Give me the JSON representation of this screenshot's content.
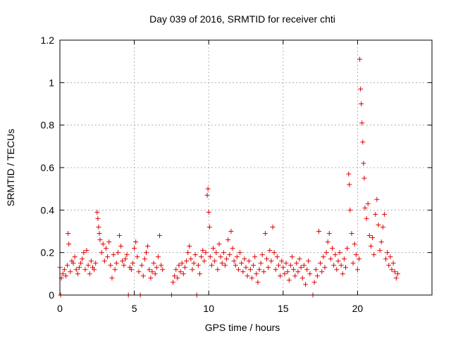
{
  "chart_data": {
    "type": "scatter",
    "title": "Day 039 of 2016, SRMTID for receiver chti",
    "xlabel": "GPS time / hours",
    "ylabel": "SRMTID / TECUs",
    "xlim": [
      0,
      25
    ],
    "ylim": [
      0,
      1.2
    ],
    "xticks": [
      "0",
      "5",
      "10",
      "15",
      "20"
    ],
    "yticks": [
      "0",
      "0.2",
      "0.4",
      "0.6",
      "0.8",
      "1",
      "1.2"
    ],
    "grid": true,
    "marker": "+",
    "color": "#e00000",
    "series": [
      {
        "name": "SRMTID",
        "points": [
          [
            0.0,
            0.13
          ],
          [
            0.05,
            0.0
          ],
          [
            0.1,
            0.08
          ],
          [
            0.2,
            0.1
          ],
          [
            0.3,
            0.12
          ],
          [
            0.4,
            0.09
          ],
          [
            0.5,
            0.14
          ],
          [
            0.55,
            0.29
          ],
          [
            0.6,
            0.24
          ],
          [
            0.7,
            0.11
          ],
          [
            0.8,
            0.16
          ],
          [
            0.9,
            0.15
          ],
          [
            1.0,
            0.18
          ],
          [
            1.1,
            0.12
          ],
          [
            1.2,
            0.1
          ],
          [
            1.3,
            0.13
          ],
          [
            1.4,
            0.15
          ],
          [
            1.5,
            0.17
          ],
          [
            1.6,
            0.2
          ],
          [
            1.7,
            0.12
          ],
          [
            1.8,
            0.21
          ],
          [
            1.9,
            0.14
          ],
          [
            2.0,
            0.1
          ],
          [
            2.1,
            0.16
          ],
          [
            2.2,
            0.13
          ],
          [
            2.3,
            0.12
          ],
          [
            2.4,
            0.15
          ],
          [
            2.5,
            0.39
          ],
          [
            2.55,
            0.36
          ],
          [
            2.6,
            0.32
          ],
          [
            2.65,
            0.29
          ],
          [
            2.7,
            0.26
          ],
          [
            2.8,
            0.2
          ],
          [
            2.9,
            0.24
          ],
          [
            3.0,
            0.16
          ],
          [
            3.1,
            0.22
          ],
          [
            3.2,
            0.18
          ],
          [
            3.3,
            0.25
          ],
          [
            3.4,
            0.14
          ],
          [
            3.5,
            0.08
          ],
          [
            3.6,
            0.19
          ],
          [
            3.7,
            0.12
          ],
          [
            3.8,
            0.15
          ],
          [
            3.9,
            0.2
          ],
          [
            4.0,
            0.28
          ],
          [
            4.1,
            0.23
          ],
          [
            4.2,
            0.16
          ],
          [
            4.3,
            0.14
          ],
          [
            4.4,
            0.17
          ],
          [
            4.5,
            0.19
          ],
          [
            4.6,
            0.0
          ],
          [
            4.7,
            0.13
          ],
          [
            4.8,
            0.12
          ],
          [
            4.9,
            0.15
          ],
          [
            5.0,
            0.22
          ],
          [
            5.1,
            0.25
          ],
          [
            5.2,
            0.18
          ],
          [
            5.3,
            0.11
          ],
          [
            5.4,
            0.0
          ],
          [
            5.5,
            0.14
          ],
          [
            5.6,
            0.09
          ],
          [
            5.7,
            0.17
          ],
          [
            5.8,
            0.2
          ],
          [
            5.9,
            0.23
          ],
          [
            6.0,
            0.12
          ],
          [
            6.1,
            0.08
          ],
          [
            6.2,
            0.11
          ],
          [
            6.3,
            0.15
          ],
          [
            6.4,
            0.1
          ],
          [
            6.5,
            0.13
          ],
          [
            6.6,
            0.18
          ],
          [
            6.7,
            0.28
          ],
          [
            6.8,
            0.14
          ],
          [
            6.9,
            0.12
          ],
          [
            7.5,
            0.0
          ],
          [
            7.6,
            0.06
          ],
          [
            7.7,
            0.09
          ],
          [
            7.8,
            0.12
          ],
          [
            7.9,
            0.08
          ],
          [
            8.0,
            0.14
          ],
          [
            8.1,
            0.11
          ],
          [
            8.2,
            0.15
          ],
          [
            8.3,
            0.1
          ],
          [
            8.4,
            0.13
          ],
          [
            8.5,
            0.16
          ],
          [
            8.6,
            0.2
          ],
          [
            8.7,
            0.23
          ],
          [
            8.8,
            0.17
          ],
          [
            8.9,
            0.12
          ],
          [
            9.0,
            0.15
          ],
          [
            9.1,
            0.19
          ],
          [
            9.2,
            0.0
          ],
          [
            9.3,
            0.14
          ],
          [
            9.4,
            0.1
          ],
          [
            9.5,
            0.18
          ],
          [
            9.6,
            0.21
          ],
          [
            9.7,
            0.16
          ],
          [
            9.8,
            0.2
          ],
          [
            9.9,
            0.47
          ],
          [
            9.95,
            0.5
          ],
          [
            10.0,
            0.39
          ],
          [
            10.05,
            0.32
          ],
          [
            10.1,
            0.18
          ],
          [
            10.2,
            0.14
          ],
          [
            10.3,
            0.22
          ],
          [
            10.4,
            0.16
          ],
          [
            10.5,
            0.2
          ],
          [
            10.6,
            0.12
          ],
          [
            10.7,
            0.24
          ],
          [
            10.8,
            0.18
          ],
          [
            10.9,
            0.15
          ],
          [
            11.0,
            0.2
          ],
          [
            11.1,
            0.14
          ],
          [
            11.2,
            0.17
          ],
          [
            11.3,
            0.26
          ],
          [
            11.4,
            0.19
          ],
          [
            11.5,
            0.3
          ],
          [
            11.6,
            0.22
          ],
          [
            11.7,
            0.16
          ],
          [
            11.8,
            0.14
          ],
          [
            11.9,
            0.18
          ],
          [
            12.0,
            0.12
          ],
          [
            12.1,
            0.2
          ],
          [
            12.2,
            0.15
          ],
          [
            12.3,
            0.11
          ],
          [
            12.4,
            0.17
          ],
          [
            12.5,
            0.13
          ],
          [
            12.6,
            0.09
          ],
          [
            12.7,
            0.16
          ],
          [
            12.8,
            0.12
          ],
          [
            12.9,
            0.08
          ],
          [
            13.0,
            0.14
          ],
          [
            13.1,
            0.18
          ],
          [
            13.2,
            0.1
          ],
          [
            13.3,
            0.06
          ],
          [
            13.4,
            0.12
          ],
          [
            13.5,
            0.15
          ],
          [
            13.6,
            0.19
          ],
          [
            13.7,
            0.11
          ],
          [
            13.8,
            0.29
          ],
          [
            13.9,
            0.17
          ],
          [
            14.0,
            0.13
          ],
          [
            14.1,
            0.21
          ],
          [
            14.2,
            0.16
          ],
          [
            14.3,
            0.32
          ],
          [
            14.4,
            0.2
          ],
          [
            14.5,
            0.12
          ],
          [
            14.6,
            0.18
          ],
          [
            14.7,
            0.14
          ],
          [
            14.8,
            0.09
          ],
          [
            14.9,
            0.16
          ],
          [
            15.0,
            0.13
          ],
          [
            15.1,
            0.1
          ],
          [
            15.2,
            0.15
          ],
          [
            15.3,
            0.11
          ],
          [
            15.4,
            0.07
          ],
          [
            15.5,
            0.14
          ],
          [
            15.6,
            0.18
          ],
          [
            15.7,
            0.12
          ],
          [
            15.8,
            0.09
          ],
          [
            15.9,
            0.15
          ],
          [
            16.0,
            0.11
          ],
          [
            16.1,
            0.17
          ],
          [
            16.2,
            0.13
          ],
          [
            16.3,
            0.08
          ],
          [
            16.4,
            0.14
          ],
          [
            16.5,
            0.05
          ],
          [
            16.6,
            0.12
          ],
          [
            16.7,
            0.16
          ],
          [
            16.8,
            0.1
          ],
          [
            17.0,
            0.0
          ],
          [
            17.1,
            0.06
          ],
          [
            17.2,
            0.12
          ],
          [
            17.3,
            0.09
          ],
          [
            17.4,
            0.3
          ],
          [
            17.5,
            0.15
          ],
          [
            17.6,
            0.11
          ],
          [
            17.7,
            0.18
          ],
          [
            17.8,
            0.13
          ],
          [
            17.9,
            0.2
          ],
          [
            18.0,
            0.25
          ],
          [
            18.1,
            0.29
          ],
          [
            18.2,
            0.17
          ],
          [
            18.3,
            0.22
          ],
          [
            18.4,
            0.14
          ],
          [
            18.5,
            0.19
          ],
          [
            18.6,
            0.12
          ],
          [
            18.7,
            0.16
          ],
          [
            18.8,
            0.2
          ],
          [
            18.9,
            0.14
          ],
          [
            19.0,
            0.1
          ],
          [
            19.1,
            0.17
          ],
          [
            19.2,
            0.13
          ],
          [
            19.3,
            0.22
          ],
          [
            19.4,
            0.57
          ],
          [
            19.45,
            0.52
          ],
          [
            19.5,
            0.4
          ],
          [
            19.6,
            0.29
          ],
          [
            19.7,
            0.15
          ],
          [
            19.8,
            0.24
          ],
          [
            19.9,
            0.19
          ],
          [
            20.0,
            0.12
          ],
          [
            20.1,
            0.17
          ],
          [
            20.15,
            1.11
          ],
          [
            20.2,
            0.97
          ],
          [
            20.25,
            0.9
          ],
          [
            20.3,
            0.81
          ],
          [
            20.35,
            0.72
          ],
          [
            20.4,
            0.62
          ],
          [
            20.45,
            0.55
          ],
          [
            20.5,
            0.41
          ],
          [
            20.6,
            0.36
          ],
          [
            20.7,
            0.43
          ],
          [
            20.8,
            0.28
          ],
          [
            20.9,
            0.23
          ],
          [
            21.0,
            0.27
          ],
          [
            21.1,
            0.19
          ],
          [
            21.2,
            0.38
          ],
          [
            21.3,
            0.45
          ],
          [
            21.4,
            0.33
          ],
          [
            21.5,
            0.21
          ],
          [
            21.6,
            0.25
          ],
          [
            21.7,
            0.32
          ],
          [
            21.8,
            0.38
          ],
          [
            21.9,
            0.17
          ],
          [
            22.0,
            0.2
          ],
          [
            22.1,
            0.14
          ],
          [
            22.2,
            0.18
          ],
          [
            22.3,
            0.12
          ],
          [
            22.4,
            0.15
          ],
          [
            22.5,
            0.11
          ],
          [
            22.6,
            0.08
          ],
          [
            22.7,
            0.1
          ]
        ]
      }
    ]
  }
}
